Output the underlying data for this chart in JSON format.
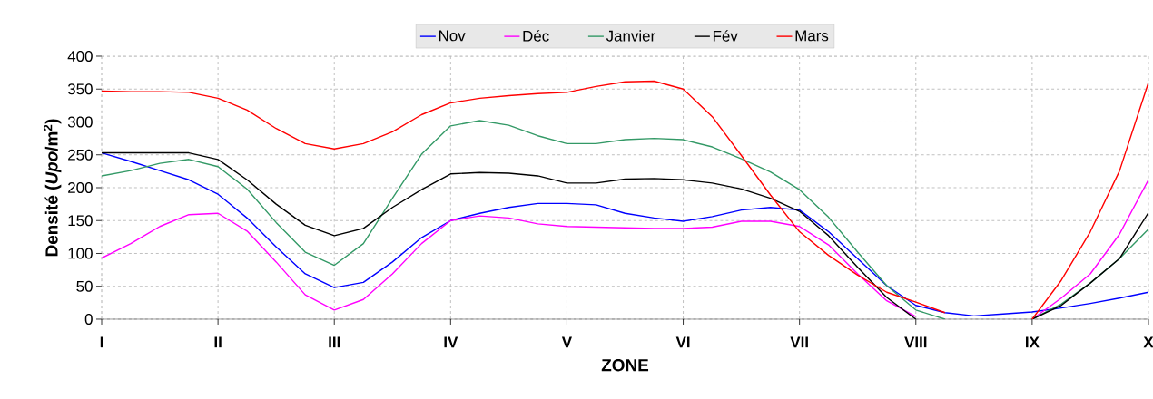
{
  "chart_data": {
    "type": "line",
    "xlabel": "ZONE",
    "ylabel": "Densité (*Upo*/m$^{2}$)",
    "categories": [
      "I",
      null,
      null,
      null,
      "II",
      null,
      null,
      null,
      "III",
      null,
      null,
      null,
      "IV",
      null,
      null,
      null,
      "V",
      null,
      null,
      null,
      "VI",
      null,
      null,
      null,
      "VII",
      null,
      null,
      null,
      "VIII",
      null,
      null,
      null,
      "IX",
      null,
      null,
      null,
      "X"
    ],
    "ylim": [
      0,
      400
    ],
    "yticks": [
      0,
      50,
      100,
      150,
      200,
      250,
      300,
      350,
      400
    ],
    "grid": true,
    "legend": "top",
    "marker": "none",
    "line_style": "solid",
    "series": [
      {
        "name": "Nov",
        "color": "#0000ff",
        "values": [
          253,
          240,
          226,
          212,
          190,
          154,
          110,
          69,
          48,
          56,
          87,
          124,
          150,
          161,
          170,
          176,
          176,
          174,
          161,
          154,
          149,
          156,
          166,
          170,
          166,
          133,
          92,
          51,
          21,
          10,
          5,
          8,
          11,
          17,
          24,
          32,
          41
        ]
      },
      {
        "name": "Déc",
        "color": "#ff00ff",
        "values": [
          93,
          115,
          141,
          159,
          161,
          134,
          87,
          37,
          14,
          30,
          69,
          115,
          150,
          157,
          154,
          145,
          141,
          140,
          139,
          138,
          138,
          140,
          149,
          149,
          141,
          113,
          69,
          28,
          4,
          null,
          null,
          null,
          0,
          32,
          69,
          129,
          212
        ]
      },
      {
        "name": "Janvier",
        "color": "#339966",
        "values": [
          218,
          226,
          237,
          243,
          232,
          198,
          147,
          102,
          82,
          115,
          184,
          251,
          294,
          302,
          295,
          279,
          267,
          267,
          273,
          275,
          273,
          262,
          244,
          224,
          197,
          155,
          102,
          51,
          14,
          0,
          null,
          null,
          0,
          23,
          55,
          92,
          137
        ]
      },
      {
        "name": "Fév",
        "color": "#000000",
        "values": [
          253,
          253,
          253,
          253,
          243,
          212,
          175,
          143,
          127,
          138,
          170,
          197,
          221,
          223,
          222,
          218,
          207,
          207,
          213,
          214,
          212,
          207,
          198,
          184,
          164,
          127,
          79,
          33,
          0,
          null,
          null,
          null,
          0,
          21,
          55,
          92,
          162
        ]
      },
      {
        "name": "Mars",
        "color": "#ff0000",
        "values": [
          347,
          346,
          346,
          345,
          336,
          318,
          290,
          267,
          259,
          267,
          285,
          311,
          329,
          336,
          340,
          343,
          345,
          354,
          361,
          362,
          350,
          308,
          249,
          189,
          133,
          97,
          67,
          41,
          26,
          10,
          null,
          null,
          0,
          59,
          133,
          225,
          360
        ]
      }
    ]
  }
}
